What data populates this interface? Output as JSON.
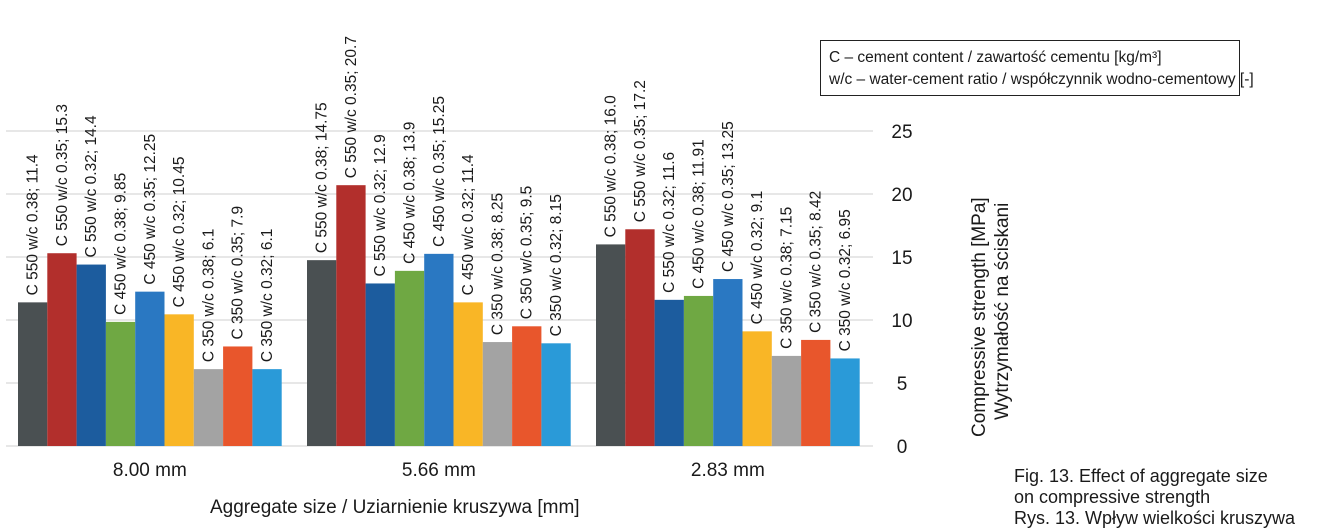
{
  "legend": {
    "line1": "C – cement content / zawartość cementu [kg/m³]",
    "line2": "w/c – water-cement ratio / współczynnik wodno-cementowy [-]"
  },
  "caption": {
    "line1": "Fig. 13. Effect of aggregate size",
    "line2": "on compressive strength",
    "line3": "Rys. 13. Wpływ wielkości kruszywa"
  },
  "chart_data": {
    "type": "bar",
    "xlabel": "Aggregate size / Uziarnienie kruszywa [mm]",
    "ylabel": "Compressive strength [MPa]",
    "ylabel2": "Wytrzymałość na ściskani",
    "ylim": [
      0,
      25
    ],
    "yticks": [
      0,
      5,
      10,
      15,
      20,
      25
    ],
    "grid": true,
    "categories": [
      "8.00 mm",
      "5.66 mm",
      "2.83 mm"
    ],
    "colors": [
      "#4a5052",
      "#b22f2c",
      "#1c5c9e",
      "#6fa843",
      "#2a78c2",
      "#f9b626",
      "#a3a3a3",
      "#e8562c",
      "#2a9ad8"
    ],
    "series": [
      {
        "name": "C 550 w/c 0.38",
        "values": [
          11.4,
          14.75,
          16.0
        ]
      },
      {
        "name": "C 550 w/c 0.35",
        "values": [
          15.3,
          20.7,
          17.2
        ]
      },
      {
        "name": "C 550 w/c 0.32",
        "values": [
          14.4,
          12.9,
          11.6
        ]
      },
      {
        "name": "C 450 w/c 0.38",
        "values": [
          9.85,
          13.9,
          11.91
        ]
      },
      {
        "name": "C 450 w/c 0.35",
        "values": [
          12.25,
          15.25,
          13.25
        ]
      },
      {
        "name": "C 450 w/c 0.32",
        "values": [
          10.45,
          11.4,
          9.1
        ]
      },
      {
        "name": "C 350 w/c 0.38",
        "values": [
          6.1,
          8.25,
          7.15
        ]
      },
      {
        "name": "C 350 w/c 0.35",
        "values": [
          7.9,
          9.5,
          8.42
        ]
      },
      {
        "name": "C 350 w/c 0.32",
        "values": [
          6.1,
          8.15,
          6.95
        ]
      }
    ],
    "value_labels": [
      [
        "C 550 w/c 0.38; 11.4",
        "C 550 w/c 0.35; 15.3",
        "C 550 w/c 0.32; 14.4",
        "C 450 w/c 0.38; 9.85",
        "C 450 w/c 0.35; 12.25",
        "C 450 w/c 0.32; 10.45",
        "C 350 w/c 0.38; 6.1",
        "C 350 w/c 0.35; 7.9",
        "C 350 w/c 0.32; 6.1"
      ],
      [
        "C 550 w/c 0.38; 14.75",
        "C 550 w/c 0.35; 20.7",
        "C 550 w/c 0.32; 12.9",
        "C 450 w/c 0.38; 13.9",
        "C 450 w/c 0.35; 15.25",
        "C 450 w/c 0.32; 11.4",
        "C 350 w/c 0.38; 8.25",
        "C 350 w/c 0.35; 9.5",
        "C 350 w/c 0.32; 8.15"
      ],
      [
        "C 550 w/c 0.38; 16.0",
        "C 550 w/c 0.35; 17.2",
        "C 550 w/c 0.32; 11.6",
        "C 450 w/c 0.38; 11.91",
        "C 450 w/c 0.35; 13.25",
        "C 450 w/c 0.32; 9.1",
        "C 350 w/c 0.38; 7.15",
        "C 350 w/c 0.35; 8.42",
        "C 350 w/c 0.32; 6.95"
      ]
    ]
  }
}
